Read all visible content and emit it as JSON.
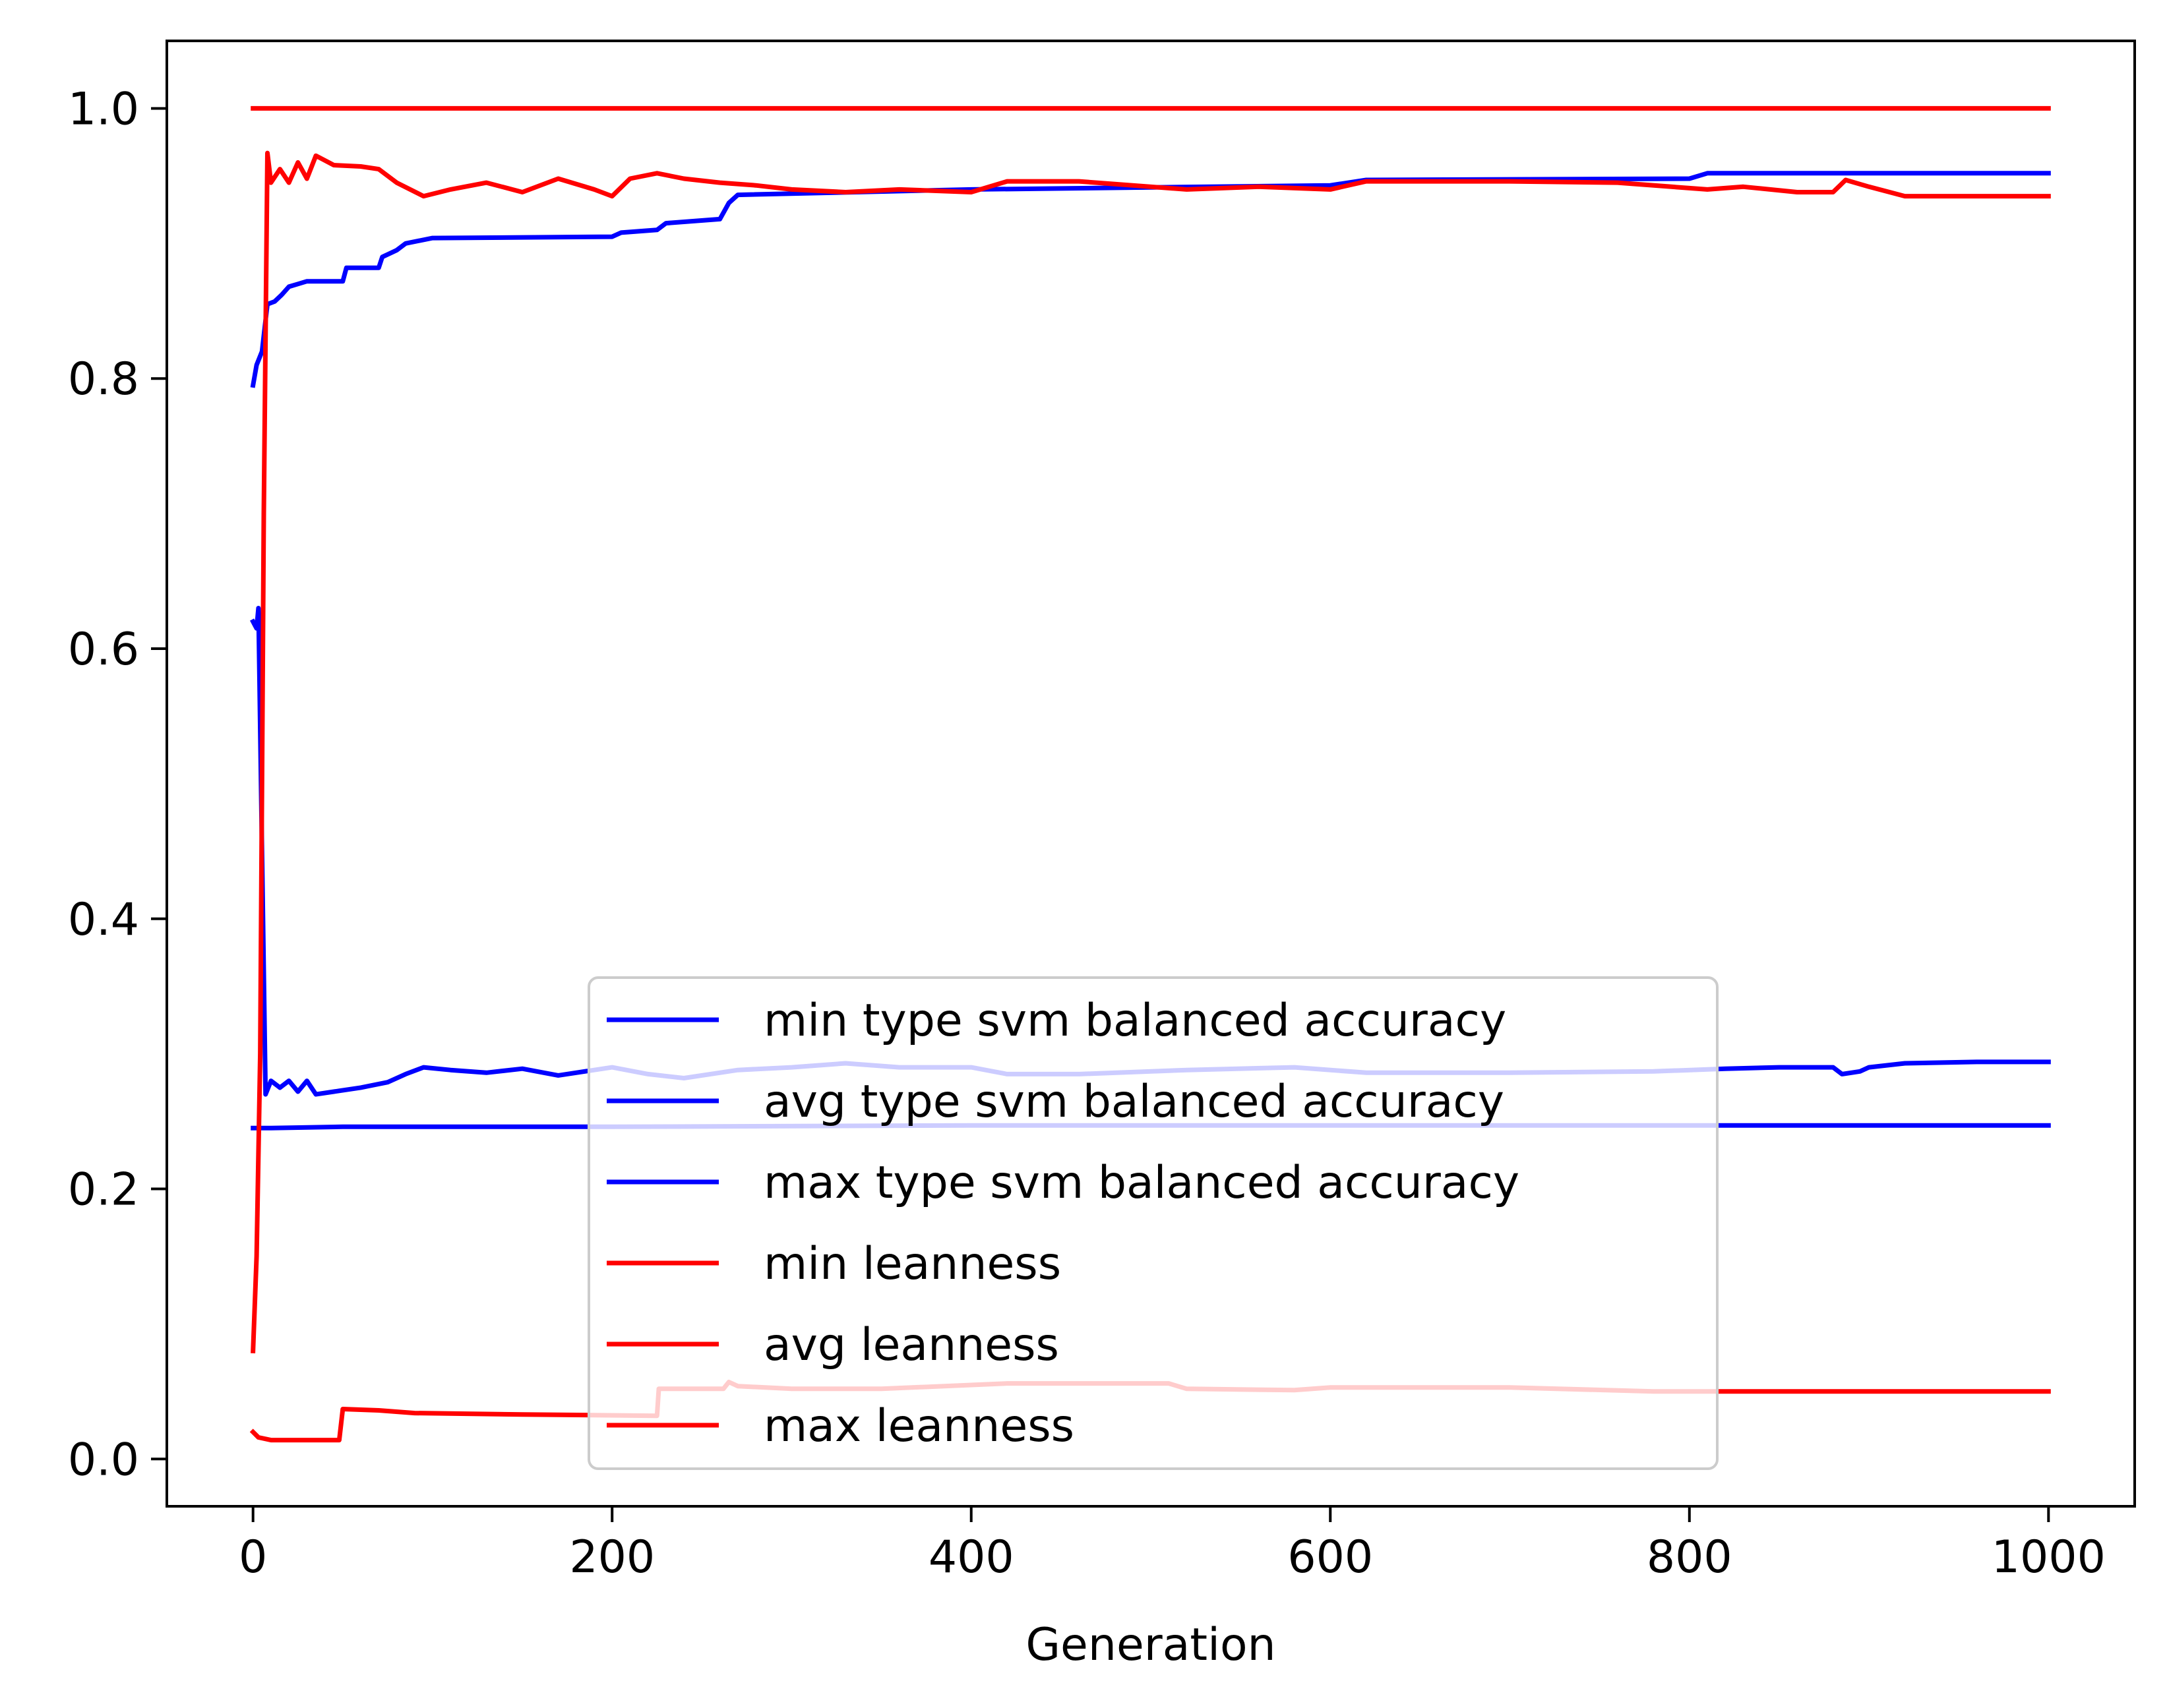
{
  "chart_data": {
    "type": "line",
    "xlabel": "Generation",
    "ylabel": "",
    "xlim": [
      -48,
      1048
    ],
    "ylim": [
      -0.035,
      1.05
    ],
    "xticks": [
      0,
      200,
      400,
      600,
      800,
      1000
    ],
    "xtick_labels": [
      "0",
      "200",
      "400",
      "600",
      "800",
      "1000"
    ],
    "yticks": [
      0.0,
      0.2,
      0.4,
      0.6,
      0.8,
      1.0
    ],
    "ytick_labels": [
      "0.0",
      "0.2",
      "0.4",
      "0.6",
      "0.8",
      "1.0"
    ],
    "grid": false,
    "legend_position": "lower-center",
    "series": [
      {
        "name": "min type svm balanced accuracy",
        "color": "#0000ff",
        "points": [
          [
            0,
            0.245
          ],
          [
            10,
            0.245
          ],
          [
            50,
            0.246
          ],
          [
            200,
            0.246
          ],
          [
            400,
            0.247
          ],
          [
            1000,
            0.247
          ]
        ]
      },
      {
        "name": "avg type svm balanced accuracy",
        "color": "#0000ff",
        "points": [
          [
            0,
            0.62
          ],
          [
            2,
            0.615
          ],
          [
            3,
            0.63
          ],
          [
            5,
            0.45
          ],
          [
            7,
            0.27
          ],
          [
            10,
            0.28
          ],
          [
            15,
            0.275
          ],
          [
            20,
            0.28
          ],
          [
            25,
            0.272
          ],
          [
            30,
            0.28
          ],
          [
            35,
            0.27
          ],
          [
            45,
            0.272
          ],
          [
            60,
            0.275
          ],
          [
            75,
            0.279
          ],
          [
            85,
            0.285
          ],
          [
            95,
            0.29
          ],
          [
            110,
            0.288
          ],
          [
            130,
            0.286
          ],
          [
            150,
            0.289
          ],
          [
            170,
            0.284
          ],
          [
            200,
            0.29
          ],
          [
            220,
            0.285
          ],
          [
            240,
            0.282
          ],
          [
            270,
            0.288
          ],
          [
            300,
            0.29
          ],
          [
            330,
            0.293
          ],
          [
            360,
            0.29
          ],
          [
            400,
            0.29
          ],
          [
            420,
            0.285
          ],
          [
            460,
            0.285
          ],
          [
            520,
            0.288
          ],
          [
            580,
            0.29
          ],
          [
            620,
            0.286
          ],
          [
            700,
            0.286
          ],
          [
            780,
            0.287
          ],
          [
            820,
            0.289
          ],
          [
            850,
            0.29
          ],
          [
            880,
            0.29
          ],
          [
            885,
            0.285
          ],
          [
            895,
            0.287
          ],
          [
            900,
            0.29
          ],
          [
            920,
            0.293
          ],
          [
            960,
            0.294
          ],
          [
            1000,
            0.294
          ]
        ]
      },
      {
        "name": "max type svm balanced accuracy",
        "color": "#0000ff",
        "points": [
          [
            0,
            0.795
          ],
          [
            2,
            0.81
          ],
          [
            5,
            0.82
          ],
          [
            8,
            0.855
          ],
          [
            12,
            0.857
          ],
          [
            16,
            0.862
          ],
          [
            20,
            0.868
          ],
          [
            25,
            0.87
          ],
          [
            30,
            0.872
          ],
          [
            50,
            0.872
          ],
          [
            52,
            0.882
          ],
          [
            70,
            0.882
          ],
          [
            72,
            0.89
          ],
          [
            80,
            0.895
          ],
          [
            85,
            0.9
          ],
          [
            100,
            0.904
          ],
          [
            200,
            0.905
          ],
          [
            205,
            0.908
          ],
          [
            225,
            0.91
          ],
          [
            230,
            0.915
          ],
          [
            260,
            0.918
          ],
          [
            265,
            0.93
          ],
          [
            270,
            0.936
          ],
          [
            400,
            0.94
          ],
          [
            600,
            0.943
          ],
          [
            620,
            0.947
          ],
          [
            800,
            0.948
          ],
          [
            810,
            0.952
          ],
          [
            1000,
            0.952
          ]
        ]
      },
      {
        "name": "min leanness",
        "color": "#ff0000",
        "points": [
          [
            0,
            0.02
          ],
          [
            3,
            0.016
          ],
          [
            10,
            0.014
          ],
          [
            30,
            0.014
          ],
          [
            48,
            0.014
          ],
          [
            50,
            0.037
          ],
          [
            70,
            0.036
          ],
          [
            90,
            0.034
          ],
          [
            150,
            0.033
          ],
          [
            225,
            0.032
          ],
          [
            226,
            0.052
          ],
          [
            262,
            0.052
          ],
          [
            265,
            0.057
          ],
          [
            270,
            0.054
          ],
          [
            300,
            0.052
          ],
          [
            350,
            0.052
          ],
          [
            420,
            0.056
          ],
          [
            510,
            0.056
          ],
          [
            520,
            0.052
          ],
          [
            580,
            0.051
          ],
          [
            600,
            0.053
          ],
          [
            700,
            0.053
          ],
          [
            780,
            0.05
          ],
          [
            1000,
            0.05
          ]
        ]
      },
      {
        "name": "avg leanness",
        "color": "#ff0000",
        "points": [
          [
            0,
            0.08
          ],
          [
            2,
            0.15
          ],
          [
            4,
            0.3
          ],
          [
            6,
            0.7
          ],
          [
            8,
            0.967
          ],
          [
            10,
            0.945
          ],
          [
            15,
            0.955
          ],
          [
            20,
            0.945
          ],
          [
            25,
            0.96
          ],
          [
            30,
            0.948
          ],
          [
            35,
            0.965
          ],
          [
            45,
            0.958
          ],
          [
            60,
            0.957
          ],
          [
            70,
            0.955
          ],
          [
            80,
            0.945
          ],
          [
            95,
            0.935
          ],
          [
            110,
            0.94
          ],
          [
            130,
            0.945
          ],
          [
            150,
            0.938
          ],
          [
            170,
            0.948
          ],
          [
            190,
            0.94
          ],
          [
            200,
            0.935
          ],
          [
            210,
            0.948
          ],
          [
            225,
            0.952
          ],
          [
            240,
            0.948
          ],
          [
            260,
            0.945
          ],
          [
            280,
            0.943
          ],
          [
            300,
            0.94
          ],
          [
            330,
            0.938
          ],
          [
            360,
            0.94
          ],
          [
            400,
            0.938
          ],
          [
            420,
            0.946
          ],
          [
            460,
            0.946
          ],
          [
            520,
            0.94
          ],
          [
            560,
            0.942
          ],
          [
            600,
            0.94
          ],
          [
            620,
            0.946
          ],
          [
            700,
            0.946
          ],
          [
            760,
            0.945
          ],
          [
            790,
            0.942
          ],
          [
            810,
            0.94
          ],
          [
            830,
            0.942
          ],
          [
            860,
            0.938
          ],
          [
            880,
            0.938
          ],
          [
            887,
            0.947
          ],
          [
            900,
            0.942
          ],
          [
            920,
            0.935
          ],
          [
            1000,
            0.935
          ]
        ]
      },
      {
        "name": "max leanness",
        "color": "#ff0000",
        "points": [
          [
            0,
            1.0
          ],
          [
            1000,
            1.0
          ]
        ]
      }
    ]
  }
}
